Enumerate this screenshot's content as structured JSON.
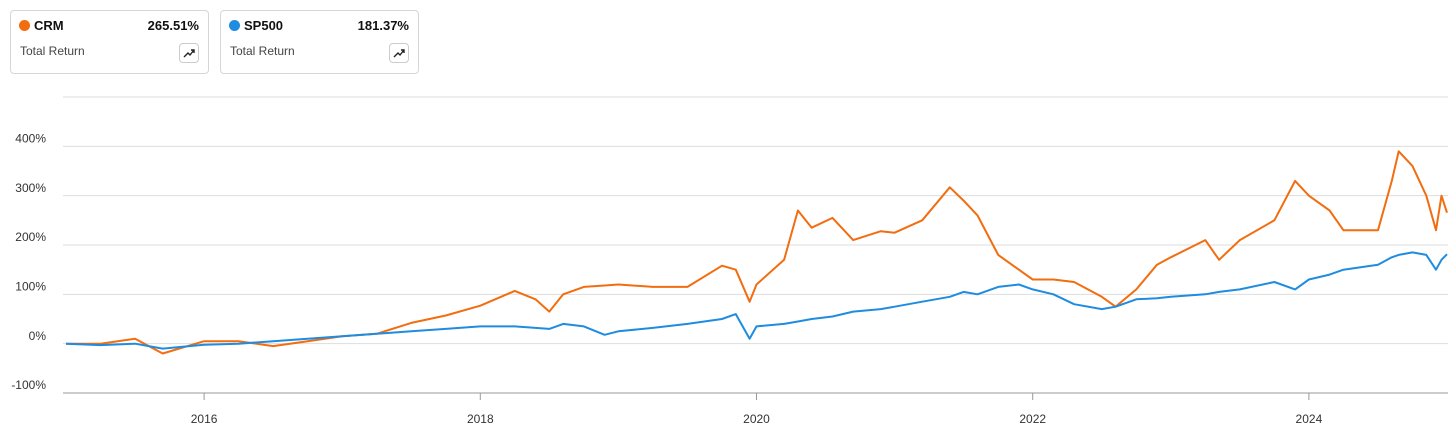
{
  "chart_data": {
    "type": "line",
    "summary_label": "Total Return",
    "x": [
      2015,
      2015.25,
      2015.5,
      2015.7,
      2016,
      2016.25,
      2016.5,
      2016.75,
      2017,
      2017.25,
      2017.5,
      2017.75,
      2018,
      2018.25,
      2018.4,
      2018.5,
      2018.6,
      2018.75,
      2018.9,
      2019,
      2019.25,
      2019.5,
      2019.75,
      2019.85,
      2019.95,
      2020,
      2020.2,
      2020.3,
      2020.4,
      2020.55,
      2020.7,
      2020.9,
      2021,
      2021.2,
      2021.4,
      2021.5,
      2021.6,
      2021.75,
      2021.9,
      2022,
      2022.15,
      2022.3,
      2022.5,
      2022.6,
      2022.75,
      2022.9,
      2023,
      2023.25,
      2023.35,
      2023.5,
      2023.75,
      2023.9,
      2024,
      2024.15,
      2024.25,
      2024.5,
      2024.6,
      2024.65,
      2024.75,
      2024.85,
      2024.92,
      2024.96,
      2025
    ],
    "series": [
      {
        "name": "CRM",
        "color": "#f26d0f",
        "summary": "265.51%",
        "values": [
          0,
          0,
          10,
          -20,
          5,
          5,
          -5,
          5,
          15,
          20,
          42,
          57,
          77,
          107,
          90,
          65,
          100,
          115,
          118,
          120,
          115,
          115,
          158,
          150,
          85,
          120,
          170,
          270,
          235,
          255,
          210,
          228,
          225,
          250,
          317,
          290,
          260,
          180,
          150,
          130,
          130,
          125,
          95,
          75,
          110,
          160,
          175,
          210,
          170,
          210,
          250,
          330,
          300,
          270,
          230,
          230,
          330,
          390,
          360,
          300,
          230,
          300,
          265.51
        ]
      },
      {
        "name": "SP500",
        "color": "#1f8ce0",
        "summary": "181.37%",
        "values": [
          0,
          -3,
          0,
          -10,
          -2,
          0,
          5,
          10,
          15,
          20,
          25,
          30,
          35,
          35,
          32,
          30,
          40,
          35,
          18,
          25,
          32,
          40,
          50,
          60,
          10,
          35,
          40,
          45,
          50,
          55,
          65,
          70,
          75,
          85,
          95,
          105,
          100,
          115,
          120,
          110,
          100,
          80,
          70,
          75,
          90,
          92,
          95,
          100,
          105,
          110,
          125,
          110,
          130,
          140,
          150,
          160,
          175,
          180,
          185,
          180,
          150,
          170,
          181.37
        ]
      }
    ],
    "xlim": [
      2015,
      2025
    ],
    "xticks": [
      2016,
      2018,
      2020,
      2022,
      2024
    ],
    "ylim": [
      -100,
      500
    ],
    "yticks": [
      {
        "value": -100,
        "label": "-100%"
      },
      {
        "value": 0,
        "label": "0%"
      },
      {
        "value": 100,
        "label": "100%"
      },
      {
        "value": 200,
        "label": "200%"
      },
      {
        "value": 300,
        "label": "300%"
      },
      {
        "value": 400,
        "label": "400%"
      }
    ],
    "grid": true
  }
}
